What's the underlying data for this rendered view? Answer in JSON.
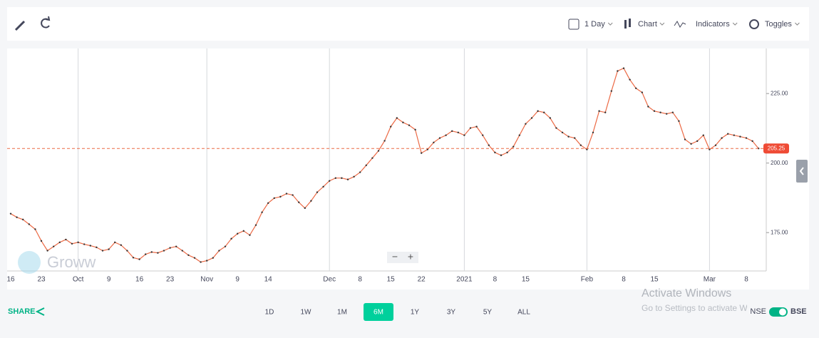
{
  "toolbar": {
    "interval": "1 Day",
    "chart": "Chart",
    "indicators": "Indicators",
    "toggles": "Toggles"
  },
  "chart_data": {
    "type": "line",
    "color": "#ec6a45",
    "categories": [
      "16",
      null,
      null,
      null,
      null,
      "23",
      null,
      null,
      null,
      null,
      null,
      "Oct",
      null,
      null,
      null,
      null,
      "9",
      null,
      null,
      null,
      null,
      "16",
      null,
      null,
      null,
      null,
      "23",
      null,
      null,
      null,
      null,
      null,
      "Nov",
      null,
      null,
      null,
      null,
      "9",
      null,
      null,
      null,
      null,
      "14",
      null,
      null,
      null,
      null,
      null,
      null,
      null,
      null,
      null,
      "Dec",
      null,
      null,
      null,
      null,
      "8",
      null,
      null,
      null,
      null,
      "15",
      null,
      null,
      null,
      null,
      "22",
      null,
      null,
      null,
      null,
      null,
      null,
      "2021",
      null,
      null,
      null,
      null,
      "8",
      null,
      null,
      null,
      null,
      "15",
      null,
      null,
      null,
      null,
      null,
      null,
      null,
      null,
      null,
      "Feb",
      null,
      null,
      null,
      null,
      null,
      "8",
      null,
      null,
      null,
      null,
      "15",
      null,
      null,
      null,
      null,
      null,
      null,
      null,
      null,
      "Mar",
      null,
      null,
      null,
      null,
      null,
      "8",
      null,
      null
    ],
    "values": [
      181.8,
      180.5,
      179.7,
      178,
      176.2,
      172,
      168.5,
      170,
      171.5,
      172.5,
      171,
      171.5,
      170.8,
      170.3,
      169.7,
      168.5,
      169,
      171.5,
      170.5,
      168.5,
      166,
      165.4,
      167.2,
      168,
      167.7,
      168.5,
      169.5,
      170,
      168.5,
      166.9,
      165.9,
      164.4,
      164.9,
      165.9,
      168.5,
      170,
      172.8,
      174.6,
      175.6,
      174.1,
      177.7,
      182.3,
      185.6,
      187.4,
      187.9,
      189,
      188.5,
      185.9,
      183.8,
      186.4,
      189.5,
      191.5,
      193.6,
      194.6,
      194.6,
      194.1,
      195.1,
      196.7,
      199.2,
      201.8,
      204.4,
      208,
      213.1,
      216.2,
      214.6,
      213.6,
      212,
      203.6,
      204.9,
      207.4,
      209,
      210,
      211.5,
      211,
      210,
      212.6,
      213.1,
      210,
      206.4,
      203.8,
      202.8,
      203.8,
      205.9,
      210,
      214.1,
      216.2,
      218.7,
      218.2,
      216.2,
      212.6,
      211,
      209.5,
      209,
      206.4,
      204.9,
      211,
      218.7,
      218.2,
      225.9,
      233.1,
      234.1,
      230,
      226.9,
      225.4,
      220.3,
      218.7,
      218.2,
      217.7,
      218.2,
      215.1,
      208.5,
      206.9,
      207.9,
      210,
      204.9,
      206.4,
      209,
      210.5,
      210,
      209.5,
      209,
      207.9,
      205.25
    ],
    "ylim": [
      161.2,
      241.2
    ],
    "yticks": [
      {
        "value": 175,
        "label": "175.00"
      },
      {
        "value": 200,
        "label": "200.00"
      },
      {
        "value": 225,
        "label": "225.00"
      }
    ],
    "last_price": 205.25,
    "grid": true
  },
  "zoom": [
    "−",
    "+"
  ],
  "watermark": "Groww",
  "footer": {
    "share": "SHARE",
    "ranges": [
      "1D",
      "1W",
      "1M",
      "6M",
      "1Y",
      "3Y",
      "5Y",
      "ALL"
    ],
    "selected_range": "6M",
    "exchanges": [
      "NSE",
      "BSE"
    ]
  },
  "os_notice": {
    "title": "Activate Windows",
    "text": "Go to Settings to activate Windows."
  }
}
